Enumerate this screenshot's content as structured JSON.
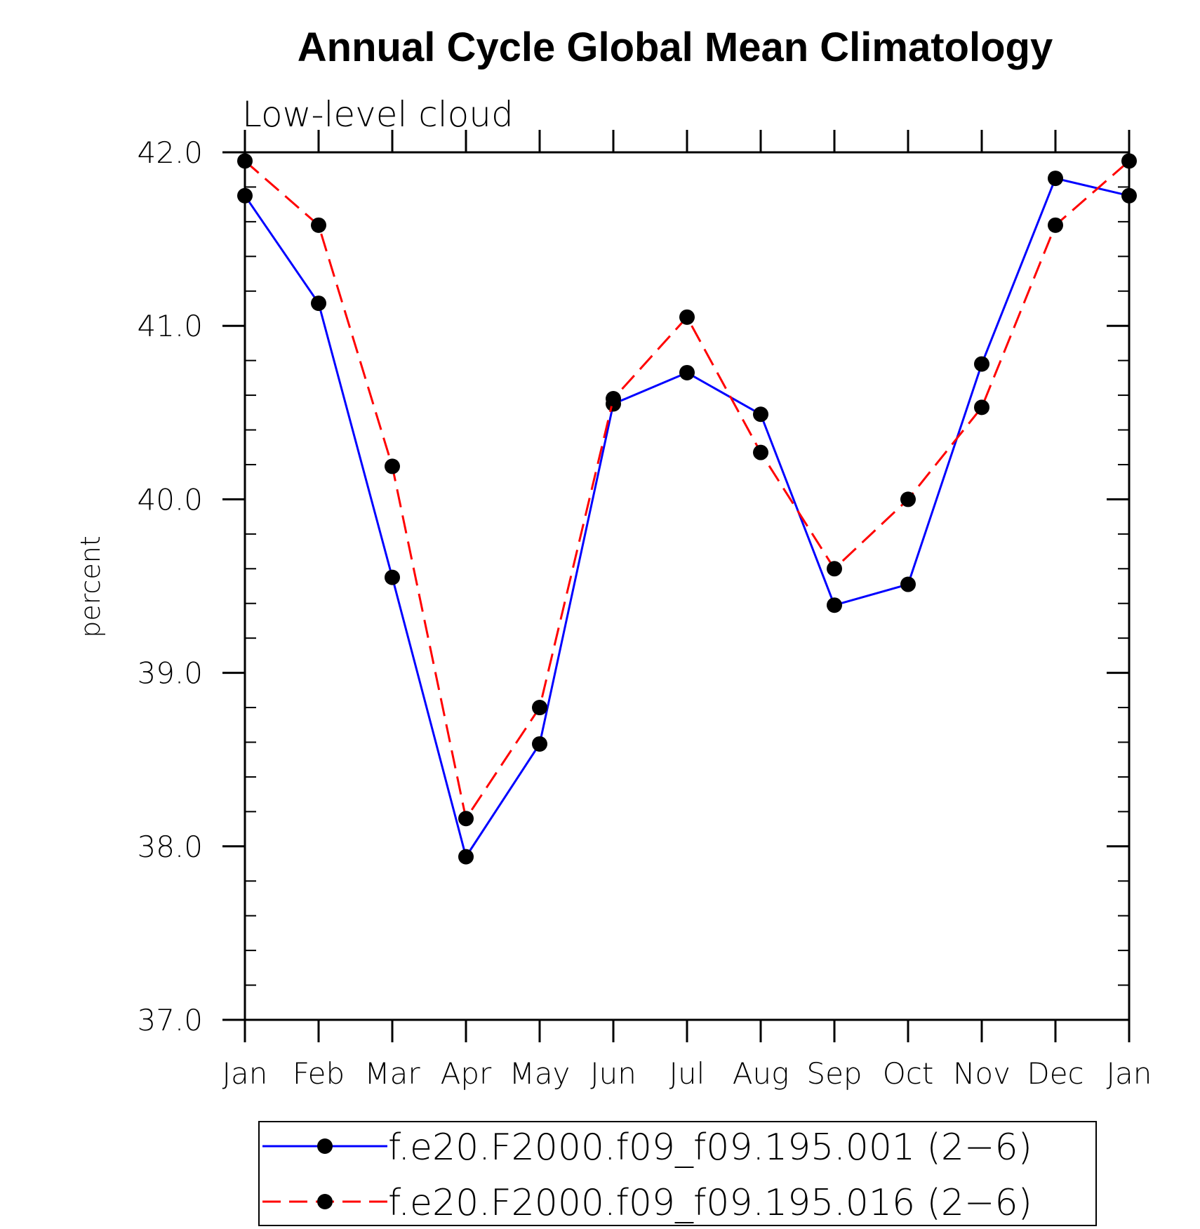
{
  "chart_data": {
    "type": "line",
    "title": "Annual Cycle Global Mean Climatology",
    "subtitle": "Low-level cloud",
    "xlabel": "",
    "ylabel": "percent",
    "categories": [
      "Jan",
      "Feb",
      "Mar",
      "Apr",
      "May",
      "Jun",
      "Jul",
      "Aug",
      "Sep",
      "Oct",
      "Nov",
      "Dec",
      "Jan"
    ],
    "ylim": [
      37.0,
      42.0
    ],
    "y_ticks": [
      "37.0",
      "38.0",
      "39.0",
      "40.0",
      "41.0",
      "42.0"
    ],
    "y_minor_step": 0.2,
    "grid": false,
    "legend_position": "bottom",
    "series": [
      {
        "name": "f.e20.F2000.f09_f09.195.001 (2−6)",
        "color": "#0000ff",
        "line_style": "solid",
        "marker": "filled-circle",
        "values": [
          41.75,
          41.13,
          39.55,
          37.94,
          38.59,
          40.55,
          40.73,
          40.49,
          39.39,
          39.51,
          40.78,
          41.85,
          41.75
        ]
      },
      {
        "name": "f.e20.F2000.f09_f09.195.016 (2−6)",
        "color": "#ff0000",
        "line_style": "dashed",
        "marker": "filled-circle",
        "values": [
          41.95,
          41.58,
          40.19,
          38.16,
          38.8,
          40.58,
          41.05,
          40.27,
          39.6,
          40.0,
          40.53,
          41.58,
          41.95
        ]
      }
    ]
  }
}
